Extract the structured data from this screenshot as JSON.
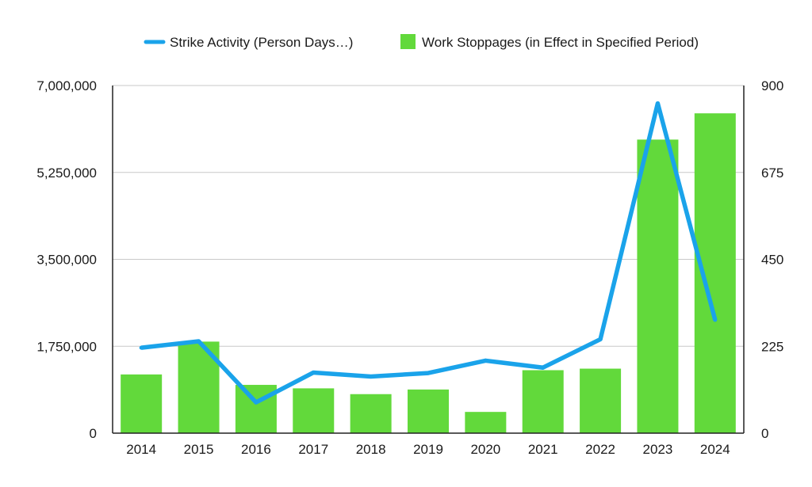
{
  "chart_data": {
    "type": "bar",
    "categories": [
      "2014",
      "2015",
      "2016",
      "2017",
      "2018",
      "2019",
      "2020",
      "2021",
      "2022",
      "2023",
      "2024"
    ],
    "series": [
      {
        "name": "Work Stoppages (in Effect in Specified Period)",
        "type": "bar",
        "axis": "right",
        "color": "#62d93b",
        "values": [
          152,
          237,
          125,
          116,
          101,
          113,
          55,
          163,
          167,
          760,
          828
        ]
      },
      {
        "name": "Strike Activity (Person Days…)",
        "type": "line",
        "axis": "left",
        "color": "#1aa3ea",
        "values": [
          1720000,
          1850000,
          620000,
          1220000,
          1140000,
          1210000,
          1460000,
          1320000,
          1890000,
          6640000,
          2280000
        ]
      }
    ],
    "y_left": {
      "ylim": [
        0,
        7000000
      ],
      "ticks": [
        "0",
        "1,750,000",
        "3,500,000",
        "5,250,000",
        "7,000,000"
      ]
    },
    "y_right": {
      "ylim": [
        0,
        900
      ],
      "ticks": [
        "0",
        "225",
        "450",
        "675",
        "900"
      ]
    },
    "grid": true,
    "legend_position": "top"
  }
}
